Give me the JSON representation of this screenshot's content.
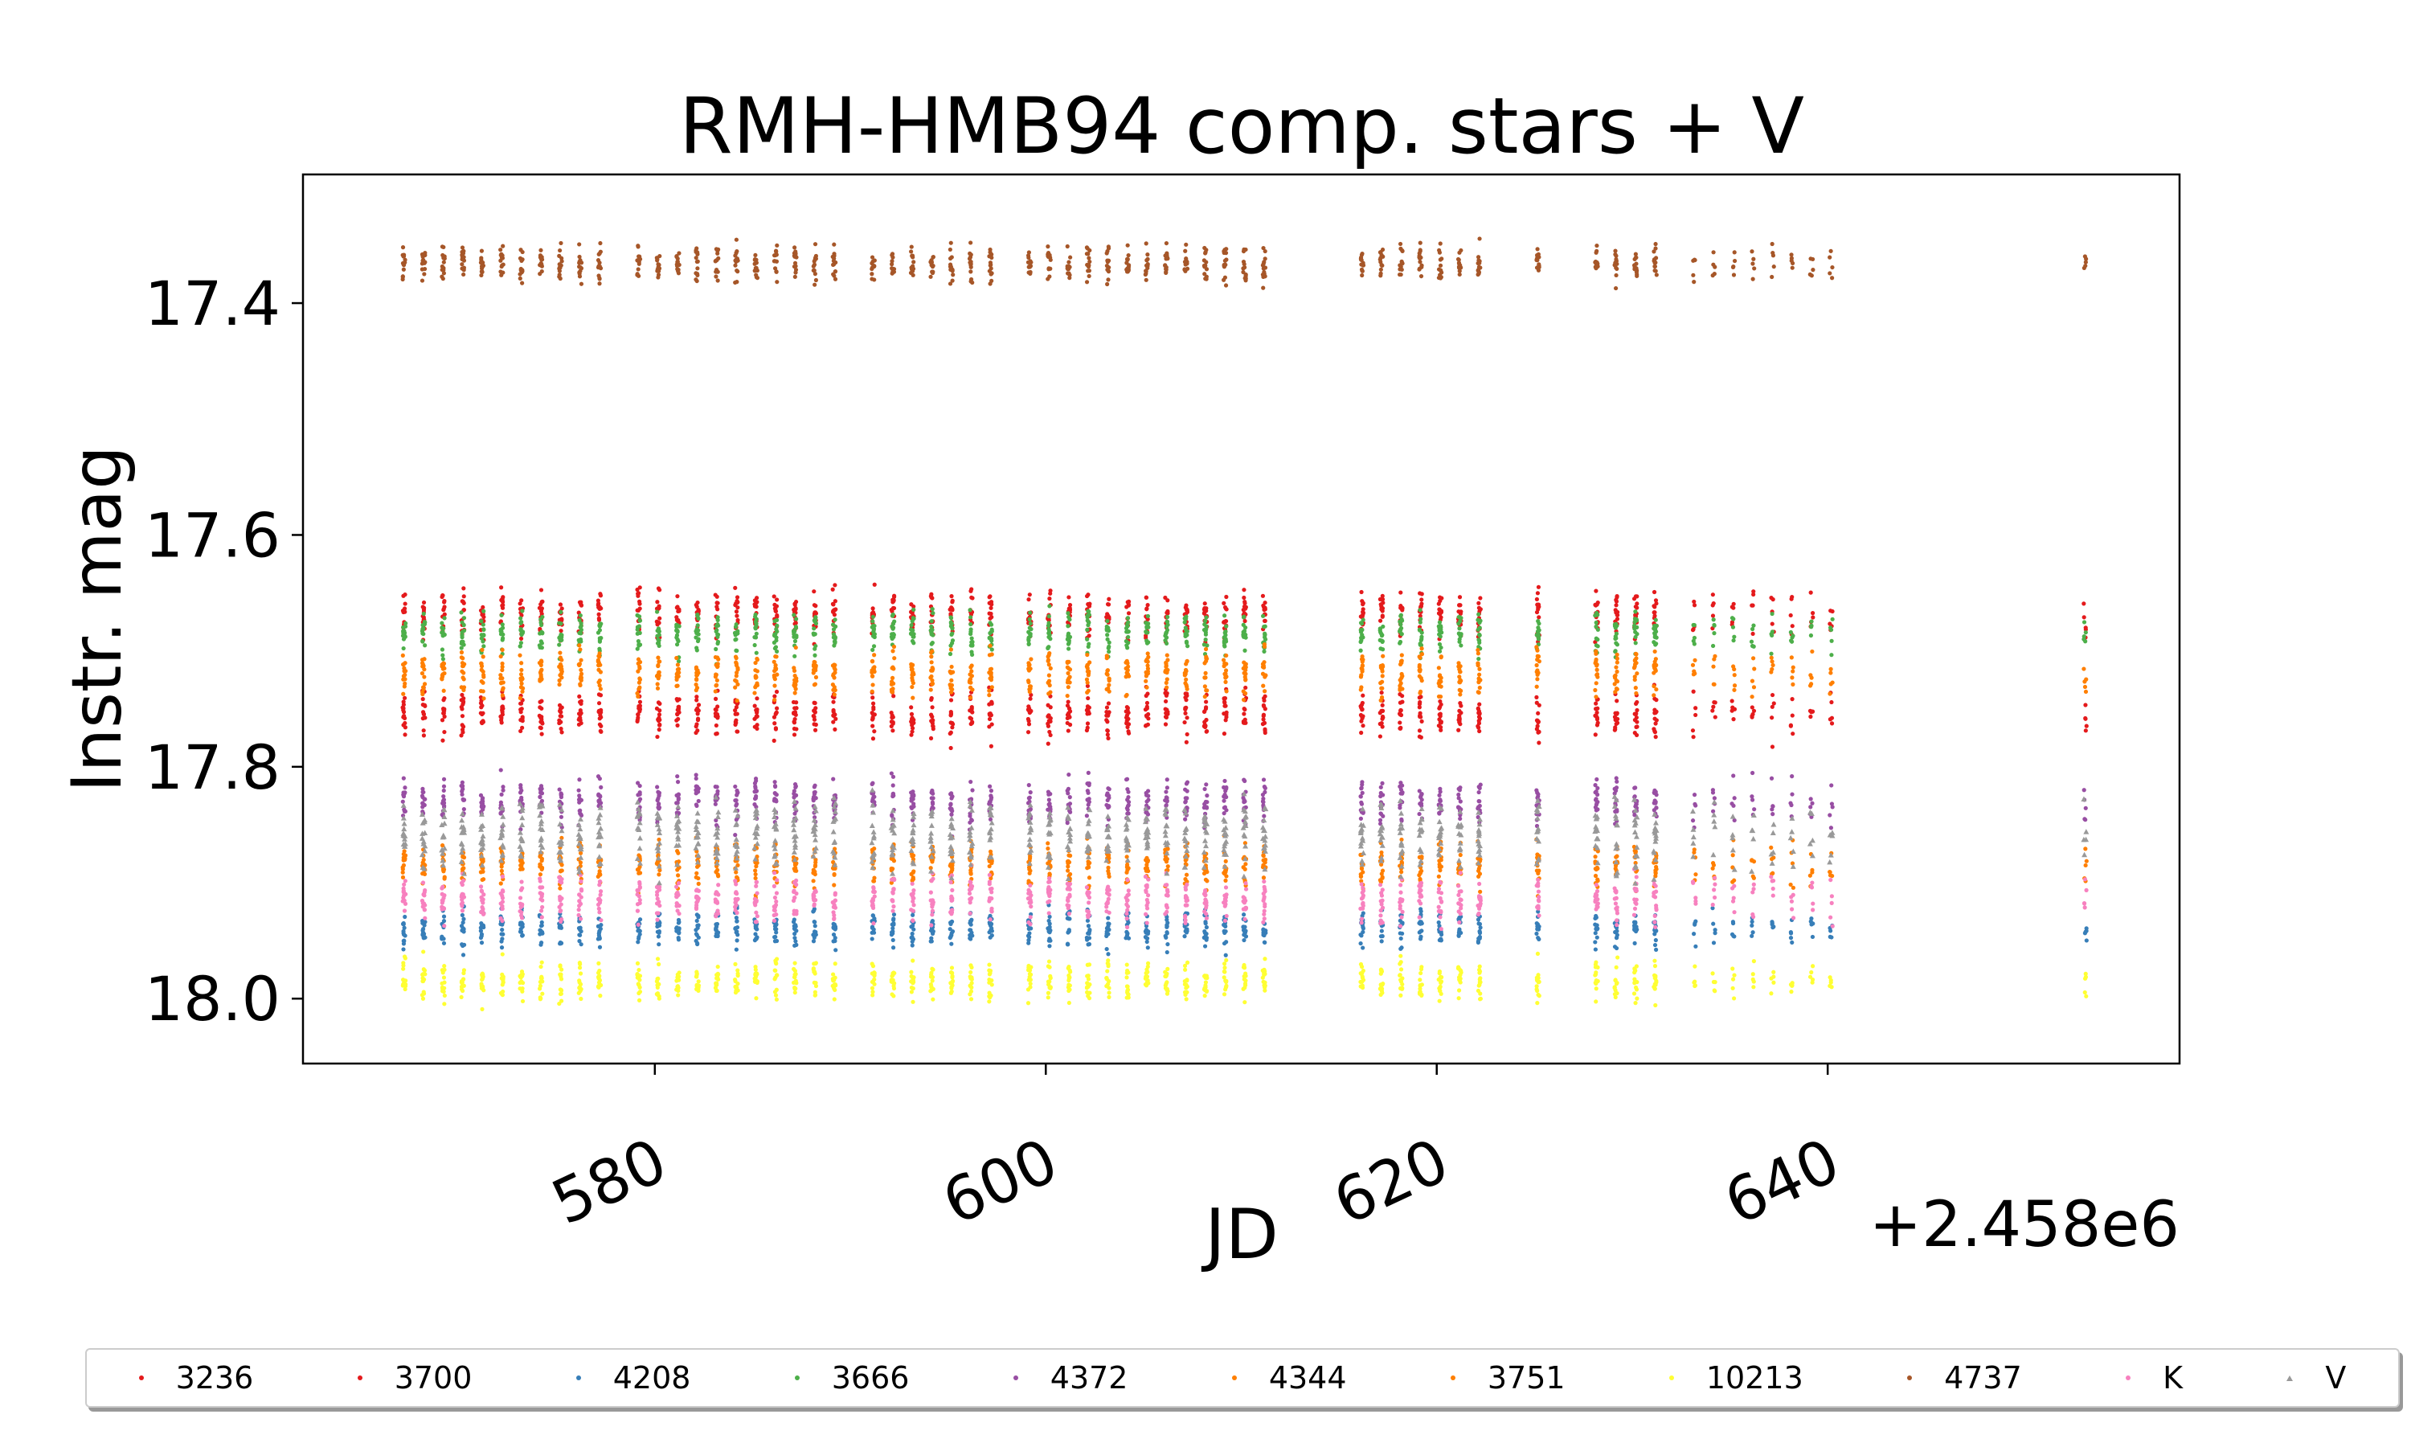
{
  "chart_data": {
    "type": "scatter",
    "title": "RMH-HMB94 comp. stars + V",
    "xlabel": "JD",
    "ylabel": "Instr. mag",
    "x_offset_label": "+2.458e6",
    "xlim": [
      562,
      658
    ],
    "ylim": [
      18.056,
      17.289
    ],
    "y_inverted": true,
    "xticks": [
      580,
      600,
      620,
      640
    ],
    "yticks": [
      17.4,
      17.6,
      17.8,
      18.0
    ],
    "ytick_labels": [
      "17.4",
      "17.6",
      "17.8",
      "18.0"
    ],
    "grid": false,
    "legend_placement": "bottom-outside",
    "nights": [
      567,
      568,
      569,
      570,
      571,
      572,
      573,
      574,
      575,
      576,
      577,
      579,
      580,
      581,
      582,
      583,
      584,
      585,
      586,
      587,
      588,
      589,
      591,
      592,
      593,
      594,
      595,
      596,
      597,
      599,
      600,
      601,
      602,
      603,
      604,
      605,
      606,
      607,
      608,
      609,
      610,
      611,
      616,
      617,
      618,
      619,
      620,
      621,
      622,
      625,
      628,
      629,
      630,
      631,
      633,
      634,
      635,
      636,
      637,
      638,
      639,
      640,
      653
    ],
    "series": [
      {
        "name": "3236",
        "color": "#e41a1c",
        "marker": "dot",
        "mean_mag": 17.668,
        "scatter": 0.01
      },
      {
        "name": "3700",
        "color": "#e41a1c",
        "marker": "dot",
        "mean_mag": 17.755,
        "scatter": 0.01
      },
      {
        "name": "4208",
        "color": "#377eb8",
        "marker": "dot",
        "mean_mag": 17.94,
        "scatter": 0.008
      },
      {
        "name": "3666",
        "color": "#4daf4a",
        "marker": "dot",
        "mean_mag": 17.685,
        "scatter": 0.009
      },
      {
        "name": "4372",
        "color": "#984ea3",
        "marker": "dot",
        "mean_mag": 17.83,
        "scatter": 0.01
      },
      {
        "name": "4344",
        "color": "#ff7f00",
        "marker": "dot",
        "mean_mag": 17.885,
        "scatter": 0.01
      },
      {
        "name": "3751",
        "color": "#ff7f00",
        "marker": "dot",
        "mean_mag": 17.72,
        "scatter": 0.01
      },
      {
        "name": "10213",
        "color": "#ffff33",
        "marker": "dot",
        "mean_mag": 17.985,
        "scatter": 0.009
      },
      {
        "name": "4737",
        "color": "#a65628",
        "marker": "dot",
        "mean_mag": 17.366,
        "scatter": 0.008
      },
      {
        "name": "K",
        "color": "#f781bf",
        "marker": "dot",
        "mean_mag": 17.915,
        "scatter": 0.01
      },
      {
        "name": "V",
        "color": "#999999",
        "marker": "triangle",
        "mean_mag": 17.86,
        "scatter": 0.015
      }
    ]
  }
}
